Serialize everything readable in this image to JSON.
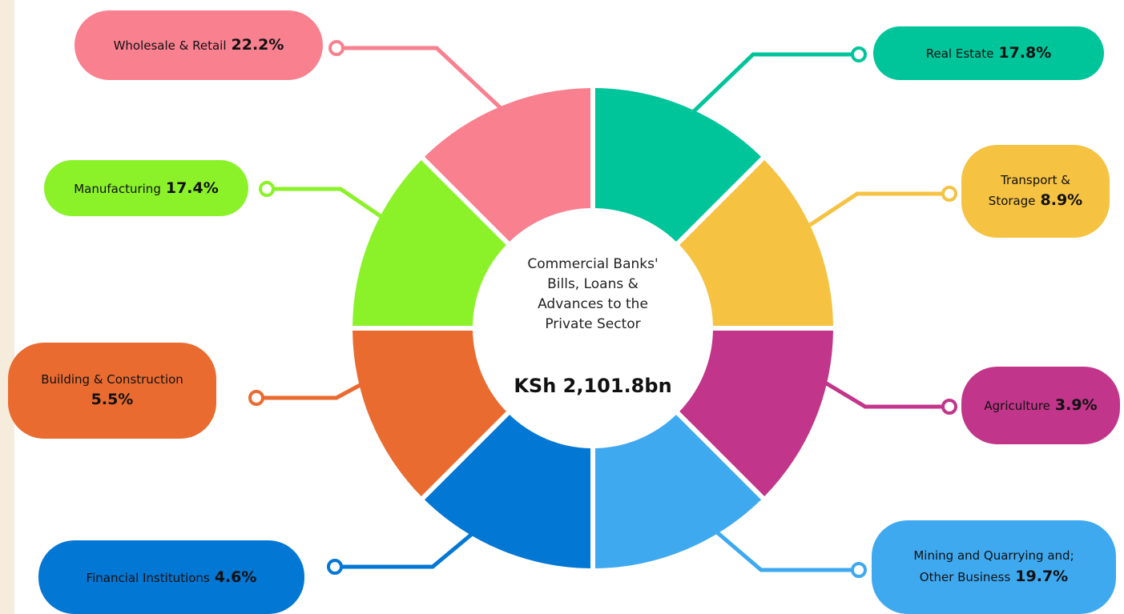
{
  "center": {
    "title": "Commercial Banks' Bills, Loans & Advances to the Private Sector",
    "total": "KSh 2,101.8bn"
  },
  "segments": [
    {
      "label": "Real Estate",
      "value": "17.8%"
    },
    {
      "label": "Transport & Storage",
      "value": "8.9%"
    },
    {
      "label": "Agriculture",
      "value": "3.9%"
    },
    {
      "label": "Mining and Quarrying and; Other Business",
      "value": "19.7%"
    },
    {
      "label": "Financial Institutions",
      "value": "4.6%"
    },
    {
      "label": "Building & Construction",
      "value": "5.5%"
    },
    {
      "label": "Manufacturing",
      "value": "17.4%"
    },
    {
      "label": "Wholesale & Retail",
      "value": "22.2%"
    }
  ]
}
